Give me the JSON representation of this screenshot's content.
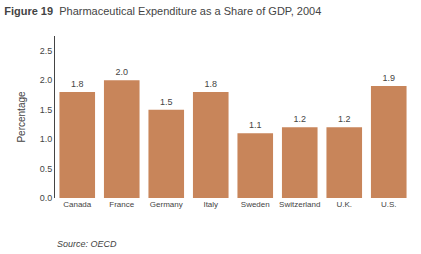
{
  "chart_data": {
    "type": "bar",
    "title": "Figure 19",
    "subtitle": "Pharmaceutical Expenditure as a Share of GDP, 2004",
    "y_label": "Percentage",
    "annotations": [
      "Source: OECD"
    ],
    "categories": [
      "Canada",
      "France",
      "Germany",
      "Italy",
      "Sweden",
      "Switzerland",
      "U.K.",
      "U.S."
    ],
    "values": [
      1.8,
      2.0,
      1.5,
      1.8,
      1.1,
      1.2,
      1.2,
      1.9
    ],
    "value_labels": [
      "1.8",
      "2.0",
      "1.5",
      "1.8",
      "1.1",
      "1.2",
      "1.2",
      "1.9"
    ],
    "data_labels": true,
    "color": "#C8855A",
    "ylim": [
      0,
      2.75
    ],
    "yticks": [
      {
        "value": 0.0,
        "label": "0.0"
      },
      0.5,
      {
        "value": 1.0,
        "label": "1.0"
      },
      1.5,
      {
        "value": 2.0,
        "label": "2.0"
      },
      2.5
    ],
    "grid": false
  }
}
